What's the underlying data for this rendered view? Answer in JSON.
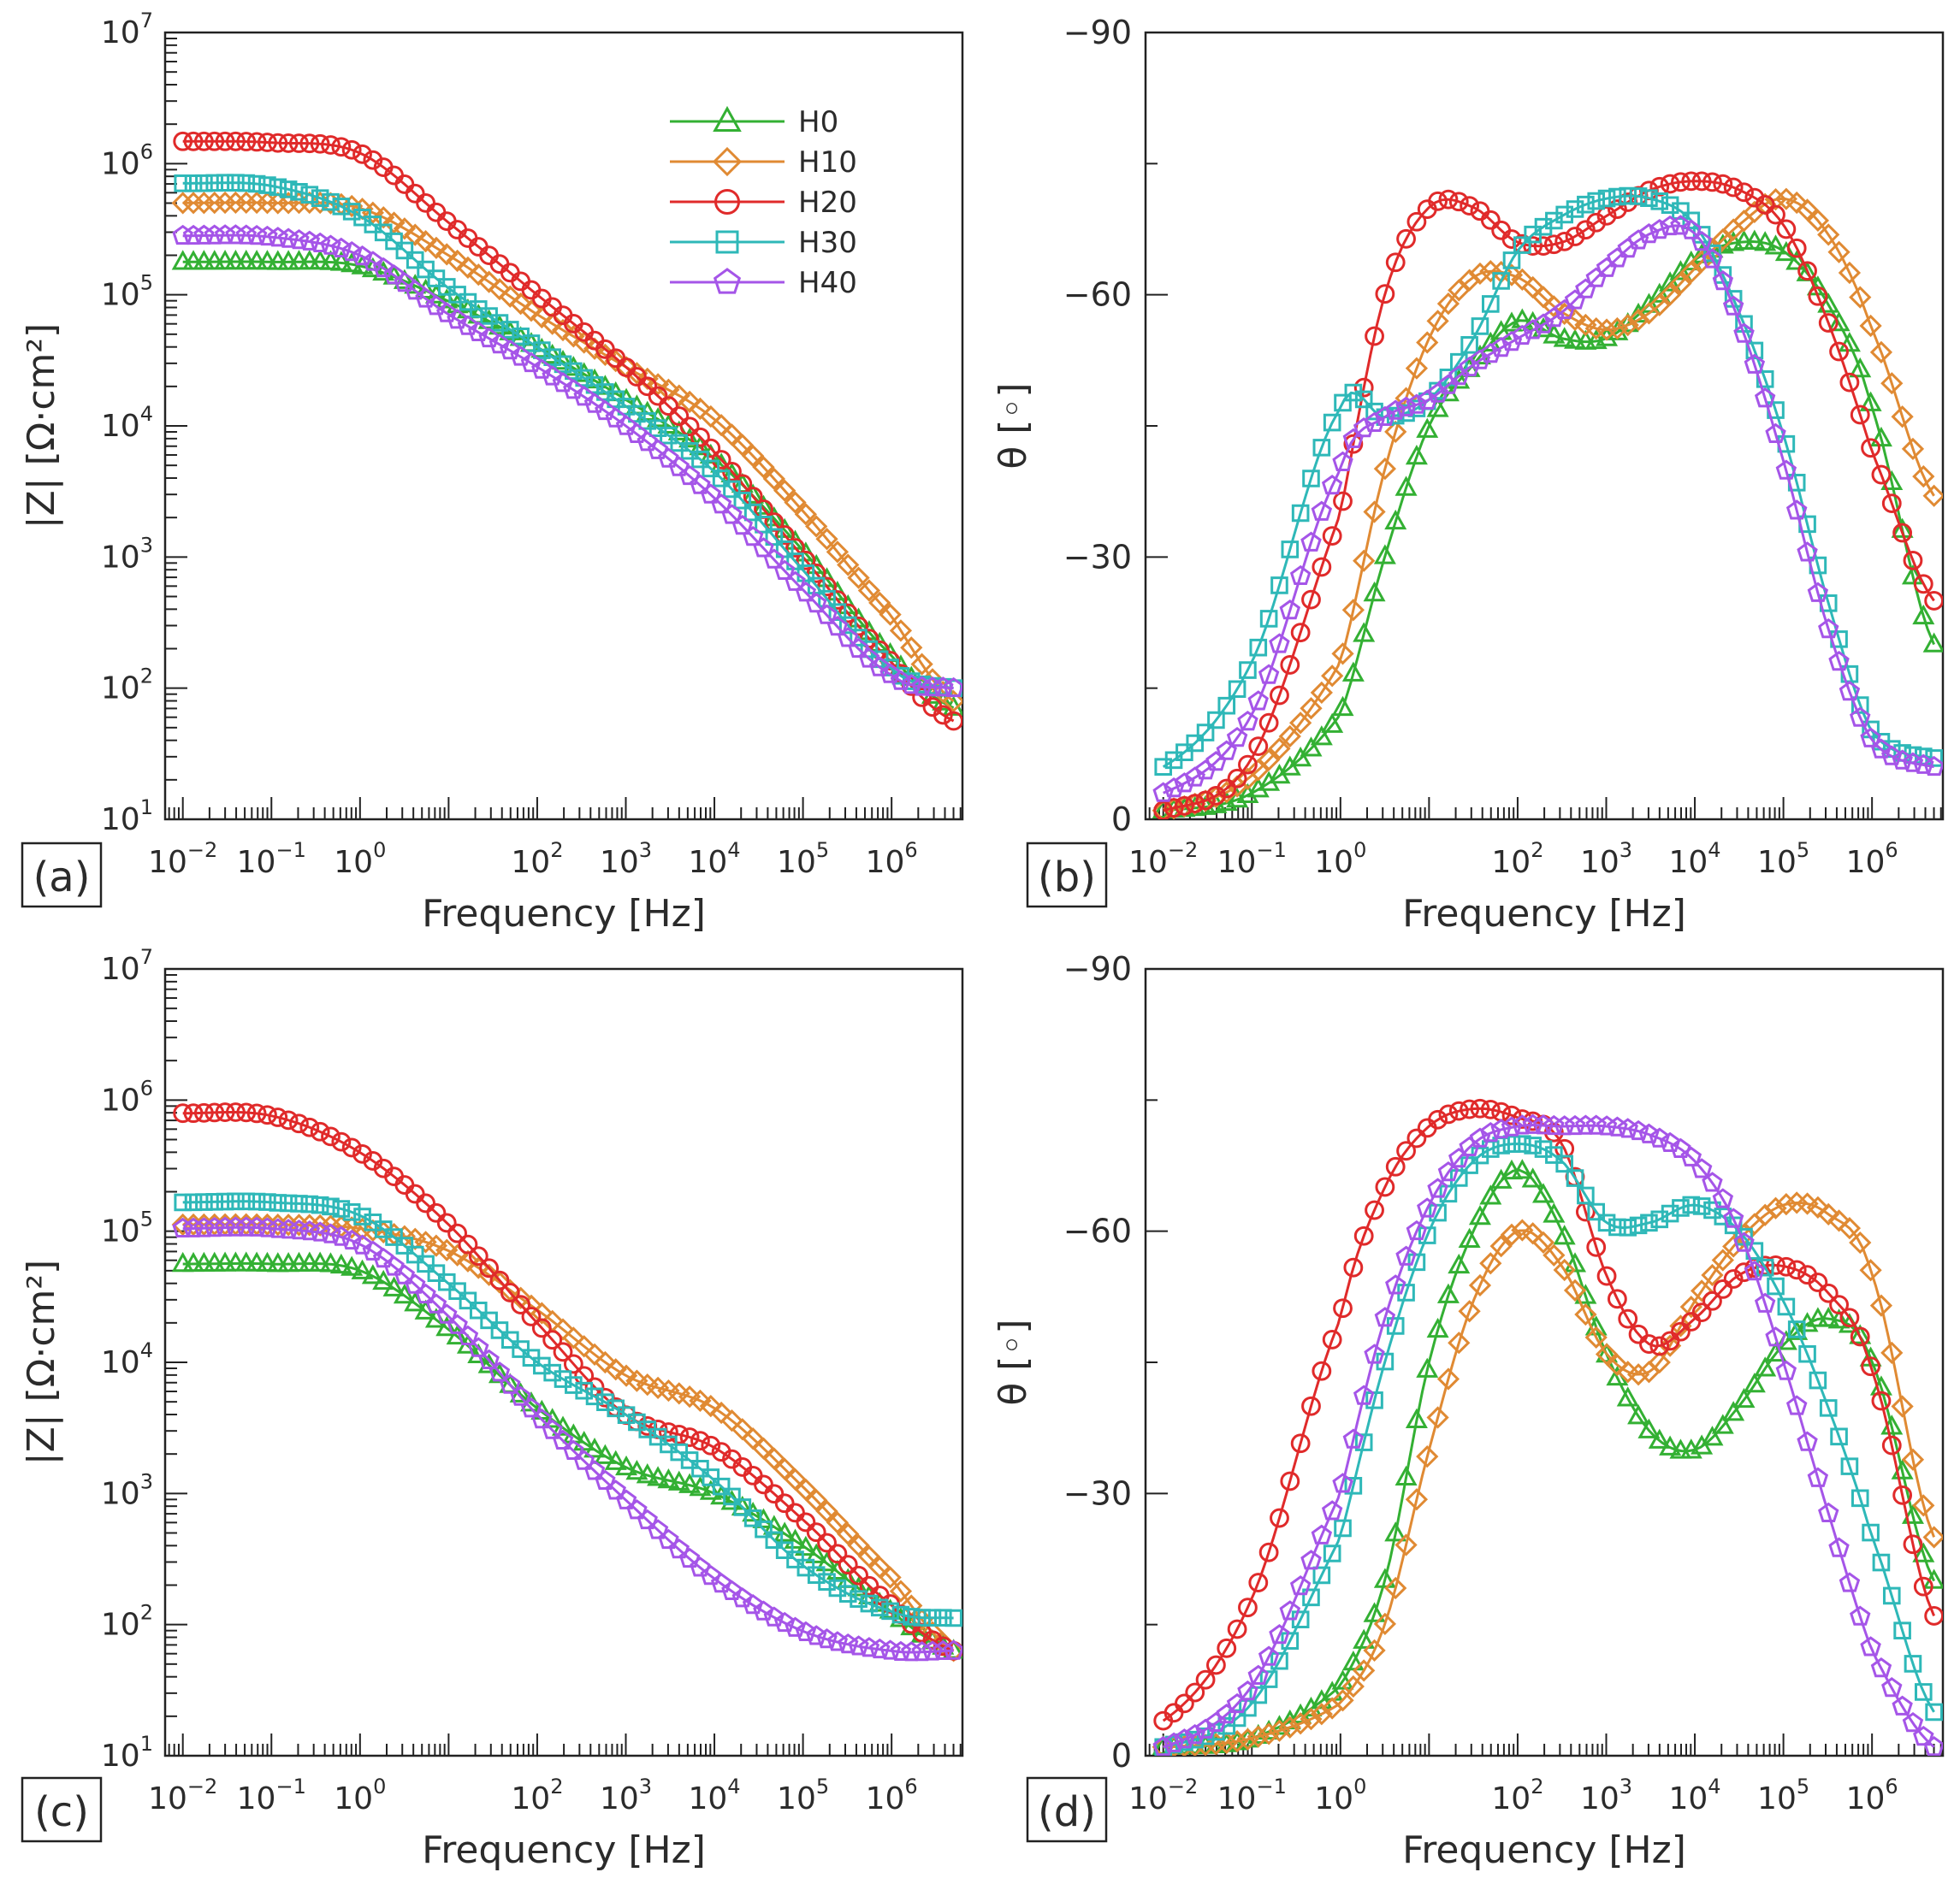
{
  "figure": {
    "x_axis_title": "Frequency [Hz]",
    "y_axis_title_magnitude": "|Z| [Ω·cm²]",
    "y_axis_title_phase": "θ [◦]"
  },
  "legend": [
    {
      "name": "H0",
      "color": "#33b033",
      "marker": "triangle"
    },
    {
      "name": "H10",
      "color": "#e08a33",
      "marker": "diamond"
    },
    {
      "name": "H20",
      "color": "#e02a2a",
      "marker": "circle"
    },
    {
      "name": "H30",
      "color": "#2eb8b8",
      "marker": "square"
    },
    {
      "name": "H40",
      "color": "#a555e8",
      "marker": "pentagon"
    }
  ],
  "chart_data": [
    {
      "panel": "(a)",
      "type": "line",
      "title": "",
      "xlabel": "Frequency [Hz]",
      "ylabel": "|Z| [Ω·cm²]",
      "xscale": "log",
      "yscale": "log",
      "xlim": [
        -2.2,
        6.8
      ],
      "ylim": [
        1,
        7
      ],
      "x_ticks": [
        -2,
        -1,
        0,
        2,
        3,
        4,
        5,
        6
      ],
      "y_ticks": [
        1,
        2,
        3,
        4,
        5,
        6,
        7
      ],
      "x": [
        -2,
        -1,
        0,
        1,
        2,
        3,
        4,
        5,
        6,
        6.7
      ],
      "series": [
        {
          "name": "H0",
          "values": [
            5.25,
            5.25,
            5.22,
            4.95,
            4.6,
            4.2,
            3.75,
            3.05,
            2.25,
            1.85
          ]
        },
        {
          "name": "H10",
          "values": [
            5.7,
            5.7,
            5.66,
            5.3,
            4.85,
            4.45,
            4.05,
            3.35,
            2.55,
            1.9
          ]
        },
        {
          "name": "H20",
          "values": [
            6.17,
            6.16,
            6.08,
            5.55,
            5.0,
            4.45,
            3.8,
            3.0,
            2.2,
            1.75
          ]
        },
        {
          "name": "H30",
          "values": [
            5.85,
            5.83,
            5.6,
            5.05,
            4.6,
            4.15,
            3.65,
            2.9,
            2.15,
            2.0
          ]
        },
        {
          "name": "H40",
          "values": [
            5.45,
            5.44,
            5.3,
            4.85,
            4.45,
            4.0,
            3.45,
            2.75,
            2.1,
            2.0
          ]
        }
      ]
    },
    {
      "panel": "(b)",
      "type": "line",
      "title": "",
      "xlabel": "Frequency [Hz]",
      "ylabel": "θ [◦]",
      "xscale": "log",
      "yscale": "linear",
      "xlim": [
        -2.2,
        6.8
      ],
      "ylim": [
        0,
        -90
      ],
      "x_ticks": [
        -2,
        -1,
        0,
        2,
        3,
        4,
        5,
        6
      ],
      "y_ticks": [
        0,
        -30,
        -60,
        -90
      ],
      "x": [
        -2,
        -1,
        0,
        0.5,
        1,
        1.5,
        2,
        2.5,
        3,
        3.5,
        4,
        4.5,
        5,
        5.5,
        6,
        6.7
      ],
      "series": [
        {
          "name": "H0",
          "values": [
            -1,
            -3,
            -12,
            -30,
            -45,
            -52,
            -57,
            -55,
            -55,
            -59,
            -64,
            -66,
            -65,
            -59,
            -47,
            -20
          ]
        },
        {
          "name": "H10",
          "values": [
            -1,
            -5,
            -18,
            -40,
            -55,
            -62,
            -62,
            -58,
            -56,
            -58,
            -63,
            -68,
            -71,
            -67,
            -56,
            -37
          ]
        },
        {
          "name": "H20",
          "values": [
            -1,
            -7,
            -35,
            -60,
            -70,
            -70,
            -66,
            -66,
            -69,
            -72,
            -73,
            -72,
            -68,
            -57,
            -42,
            -25
          ]
        },
        {
          "name": "H30",
          "values": [
            -6,
            -18,
            -47,
            -46,
            -48,
            -55,
            -65,
            -69,
            -71,
            -71,
            -68,
            -58,
            -44,
            -25,
            -10,
            -7
          ]
        },
        {
          "name": "H40",
          "values": [
            -3,
            -12,
            -40,
            -46,
            -48,
            -52,
            -55,
            -58,
            -63,
            -67,
            -67,
            -57,
            -41,
            -22,
            -9,
            -6
          ]
        }
      ]
    },
    {
      "panel": "(c)",
      "type": "line",
      "title": "",
      "xlabel": "Frequency [Hz]",
      "ylabel": "|Z| [Ω·cm²]",
      "xscale": "log",
      "yscale": "log",
      "xlim": [
        -2.2,
        6.8
      ],
      "ylim": [
        1,
        7
      ],
      "x_ticks": [
        -2,
        -1,
        0,
        2,
        3,
        4,
        5,
        6
      ],
      "y_ticks": [
        1,
        2,
        3,
        4,
        5,
        6,
        7
      ],
      "x": [
        -2,
        -1,
        0,
        1,
        2,
        3,
        4,
        5,
        6,
        6.7
      ],
      "series": [
        {
          "name": "H0",
          "values": [
            4.75,
            4.75,
            4.7,
            4.25,
            3.65,
            3.2,
            3.0,
            2.6,
            2.1,
            1.8
          ]
        },
        {
          "name": "H10",
          "values": [
            5.05,
            5.05,
            5.02,
            4.85,
            4.4,
            3.9,
            3.65,
            3.05,
            2.35,
            1.8
          ]
        },
        {
          "name": "H20",
          "values": [
            5.9,
            5.88,
            5.6,
            5.05,
            4.3,
            3.6,
            3.35,
            2.8,
            2.15,
            1.8
          ]
        },
        {
          "name": "H30",
          "values": [
            5.22,
            5.22,
            5.12,
            4.6,
            4.0,
            3.6,
            3.1,
            2.45,
            2.1,
            2.05
          ]
        },
        {
          "name": "H40",
          "values": [
            5.02,
            5.02,
            4.9,
            4.35,
            3.6,
            2.95,
            2.35,
            1.95,
            1.8,
            1.8
          ]
        }
      ]
    },
    {
      "panel": "(d)",
      "type": "line",
      "title": "",
      "xlabel": "Frequency [Hz]",
      "ylabel": "θ [◦]",
      "xscale": "log",
      "yscale": "linear",
      "xlim": [
        -2.2,
        6.8
      ],
      "ylim": [
        0,
        -90
      ],
      "x_ticks": [
        -2,
        -1,
        0,
        2,
        3,
        4,
        5,
        6
      ],
      "y_ticks": [
        0,
        -30,
        -60,
        -90
      ],
      "x": [
        -2,
        -1,
        0,
        0.5,
        1,
        1.5,
        2,
        2.5,
        3,
        3.5,
        4,
        4.5,
        5,
        5.5,
        6,
        6.7
      ],
      "series": [
        {
          "name": "H0",
          "values": [
            -1,
            -2,
            -8,
            -20,
            -45,
            -60,
            -67,
            -60,
            -46,
            -37,
            -35,
            -40,
            -47,
            -50,
            -45,
            -20
          ]
        },
        {
          "name": "H10",
          "values": [
            -1,
            -2,
            -6,
            -15,
            -35,
            -52,
            -60,
            -56,
            -46,
            -44,
            -52,
            -59,
            -63,
            -62,
            -55,
            -25
          ]
        },
        {
          "name": "H20",
          "values": [
            -4,
            -18,
            -50,
            -65,
            -72,
            -74,
            -73,
            -70,
            -55,
            -47,
            -50,
            -55,
            -56,
            -53,
            -44,
            -16
          ]
        },
        {
          "name": "H30",
          "values": [
            -1,
            -6,
            -25,
            -45,
            -60,
            -68,
            -70,
            -68,
            -61,
            -61,
            -63,
            -60,
            -52,
            -40,
            -25,
            -5
          ]
        },
        {
          "name": "H40",
          "values": [
            -1,
            -8,
            -30,
            -50,
            -63,
            -70,
            -72,
            -72,
            -72,
            -71,
            -68,
            -60,
            -45,
            -28,
            -12,
            -1
          ]
        }
      ]
    }
  ]
}
